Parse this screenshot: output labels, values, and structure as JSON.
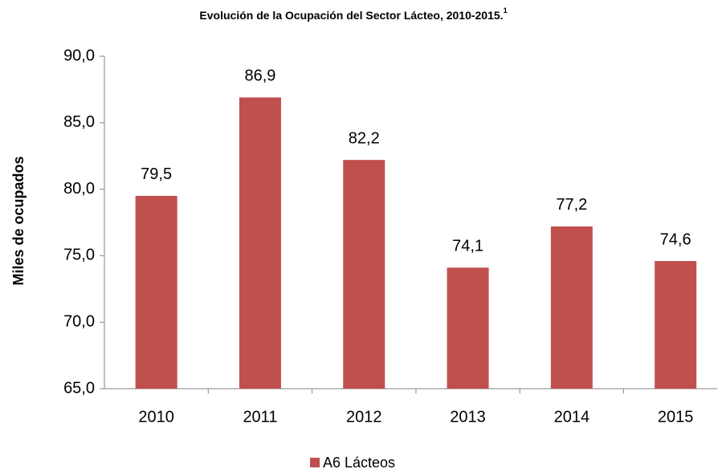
{
  "chart_data": {
    "type": "bar",
    "title": "Evolución de la Ocupación del Sector Lácteo, 2010-2015.",
    "title_note": "1",
    "y_label": "Miles de ocupados",
    "categories": [
      "2010",
      "2011",
      "2012",
      "2013",
      "2014",
      "2015"
    ],
    "series": [
      {
        "name": "A6 Lácteos",
        "color": "#c0504d",
        "values": [
          79.5,
          86.9,
          82.2,
          74.1,
          77.2,
          74.6
        ],
        "value_labels": [
          "79,5",
          "86,9",
          "82,2",
          "74,1",
          "77,2",
          "74,6"
        ]
      }
    ],
    "ylim": [
      65,
      90
    ],
    "yticks": [
      {
        "value": 65,
        "label": "65,0"
      },
      {
        "value": 70,
        "label": "70,0"
      },
      {
        "value": 75,
        "label": "75,0"
      },
      {
        "value": 80,
        "label": "80,0"
      },
      {
        "value": 85,
        "label": "85,0"
      },
      {
        "value": 90,
        "label": "90,0"
      }
    ],
    "legend": "bottom"
  }
}
